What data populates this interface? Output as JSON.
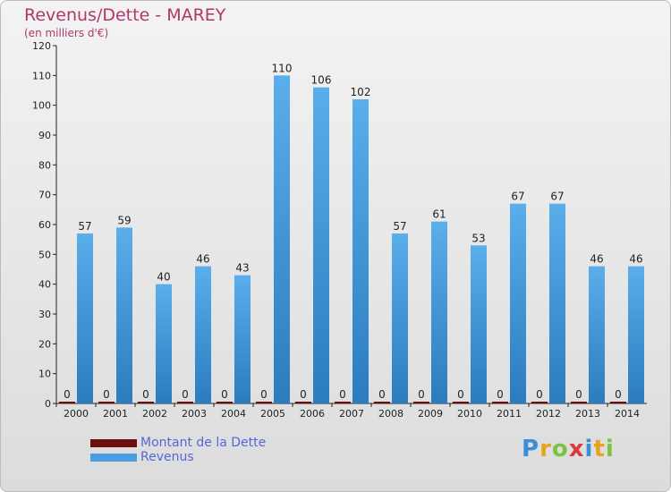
{
  "chart_data": {
    "type": "bar",
    "title": "Revenus/Dette - MAREY",
    "subtitle": "(en milliers d'€)",
    "categories": [
      "2000",
      "2001",
      "2002",
      "2003",
      "2004",
      "2005",
      "2006",
      "2007",
      "2008",
      "2009",
      "2010",
      "2011",
      "2012",
      "2013",
      "2014"
    ],
    "series": [
      {
        "name": "Montant de la Dette",
        "values": [
          0,
          0,
          0,
          0,
          0,
          0,
          0,
          0,
          0,
          0,
          0,
          0,
          0,
          0,
          0
        ],
        "color": "#6b0f0f"
      },
      {
        "name": "Revenus",
        "values": [
          57,
          59,
          40,
          46,
          43,
          110,
          106,
          102,
          57,
          61,
          53,
          67,
          67,
          46,
          46
        ],
        "color": "#4a9de0"
      }
    ],
    "ylim": [
      0,
      120
    ],
    "yticks": [
      0,
      10,
      20,
      30,
      40,
      50,
      60,
      70,
      80,
      90,
      100,
      110,
      120
    ],
    "grid": false,
    "legend": "bottom-left"
  },
  "logo": {
    "letters": [
      "P",
      "r",
      "o",
      "x",
      "i",
      "t",
      "i"
    ],
    "colors": [
      "#3b8fd9",
      "#e8a21c",
      "#7cc242",
      "#d93a3a",
      "#3b8fd9",
      "#e8a21c",
      "#7cc242"
    ]
  }
}
